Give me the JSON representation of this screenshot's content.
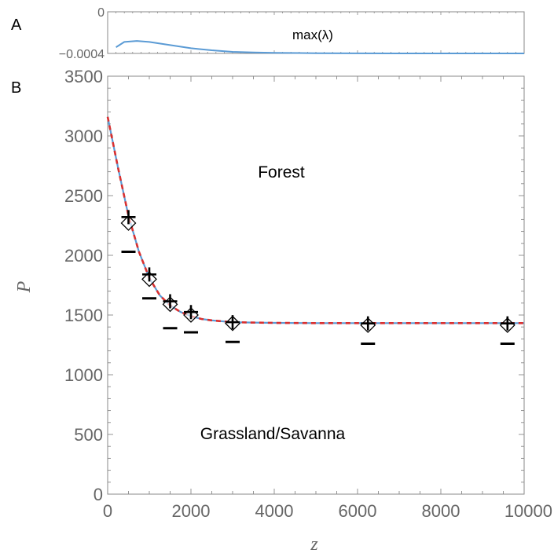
{
  "chart_data": [
    {
      "panel": "A",
      "type": "line",
      "annotation": "max(λ)",
      "xlim": [
        0,
        10000
      ],
      "ylim": [
        -0.0004,
        0
      ],
      "yticks": [
        "0",
        "−0.0004"
      ],
      "yticks_values": [
        0,
        -0.0004
      ],
      "series": [
        {
          "color": "#5b9bd5",
          "x": [
            200,
            400,
            700,
            1000,
            1500,
            2000,
            2500,
            3000,
            3500,
            4000,
            5000,
            6000,
            8000,
            10000
          ],
          "y": [
            -0.00034,
            -0.00029,
            -0.00028,
            -0.00029,
            -0.00032,
            -0.00035,
            -0.00037,
            -0.000385,
            -0.00039,
            -0.000395,
            -0.000398,
            -0.000399,
            -0.0004,
            -0.0004
          ]
        }
      ]
    },
    {
      "panel": "B",
      "type": "line",
      "xlabel": "z",
      "ylabel": "P",
      "xlim": [
        0,
        10000
      ],
      "ylim": [
        0,
        3500
      ],
      "xticks": [
        0,
        2000,
        4000,
        6000,
        8000,
        10000
      ],
      "xtick_labels": [
        "0",
        "2000",
        "4000",
        "6000",
        "8000",
        "10000"
      ],
      "yticks": [
        0,
        500,
        1000,
        1500,
        2000,
        2500,
        3000,
        3500
      ],
      "ytick_labels": [
        "0",
        "500",
        "1000",
        "1500",
        "2000",
        "2500",
        "3000",
        "3500"
      ],
      "annotations": [
        "Forest",
        "Grassland/Savanna"
      ],
      "series": [
        {
          "style": "solid",
          "color": "#5b9bd5",
          "x": [
            0,
            250,
            500,
            750,
            1000,
            1250,
            1500,
            1750,
            2000,
            2250,
            2500,
            3000,
            3500,
            4000,
            5000,
            6000,
            7000,
            8000,
            9000,
            10000
          ],
          "y": [
            3160,
            2730,
            2330,
            2030,
            1810,
            1665,
            1580,
            1525,
            1490,
            1467,
            1455,
            1440,
            1437,
            1434,
            1432,
            1432,
            1432,
            1432,
            1432,
            1432
          ]
        },
        {
          "style": "dashed",
          "color": "#d93030",
          "x": [
            0,
            250,
            500,
            750,
            1000,
            1250,
            1500,
            1750,
            2000,
            2250,
            2500,
            3000,
            3500,
            4000,
            5000,
            6000,
            7000,
            8000,
            9000,
            10000
          ],
          "y": [
            3160,
            2730,
            2330,
            2030,
            1810,
            1665,
            1580,
            1525,
            1490,
            1467,
            1455,
            1440,
            1437,
            1434,
            1432,
            1432,
            1432,
            1432,
            1432,
            1432
          ]
        }
      ],
      "markers": {
        "plus": {
          "x": [
            500,
            1000,
            1500,
            2000,
            3000,
            6250,
            9600
          ],
          "y": [
            2320,
            1840,
            1615,
            1525,
            1440,
            1430,
            1430
          ]
        },
        "diamond": {
          "x": [
            500,
            1000,
            1500,
            2000,
            3000,
            6250,
            9600
          ],
          "y": [
            2270,
            1800,
            1590,
            1500,
            1430,
            1415,
            1415
          ]
        },
        "minus": {
          "x": [
            500,
            1000,
            1500,
            2000,
            3000,
            6250,
            9600
          ],
          "y": [
            2030,
            1640,
            1390,
            1355,
            1275,
            1260,
            1260
          ]
        }
      }
    }
  ]
}
